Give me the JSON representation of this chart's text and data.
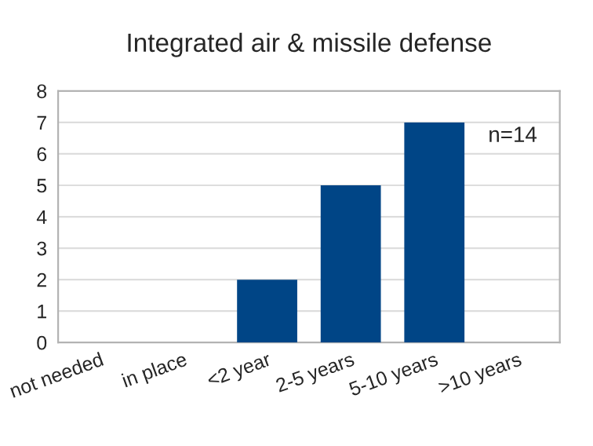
{
  "chart_data": {
    "type": "bar",
    "title": "Integrated air & missile defense",
    "categories": [
      "not needed",
      "in place",
      "<2 year",
      "2-5 years",
      "5-10 years",
      ">10 years"
    ],
    "values": [
      0,
      0,
      2,
      5,
      7,
      0
    ],
    "color": "#004586",
    "ylim": [
      0,
      8
    ],
    "yticks": [
      0,
      1,
      2,
      3,
      4,
      5,
      6,
      7,
      8
    ],
    "grid": "y",
    "annotations": [
      "n=14"
    ]
  }
}
